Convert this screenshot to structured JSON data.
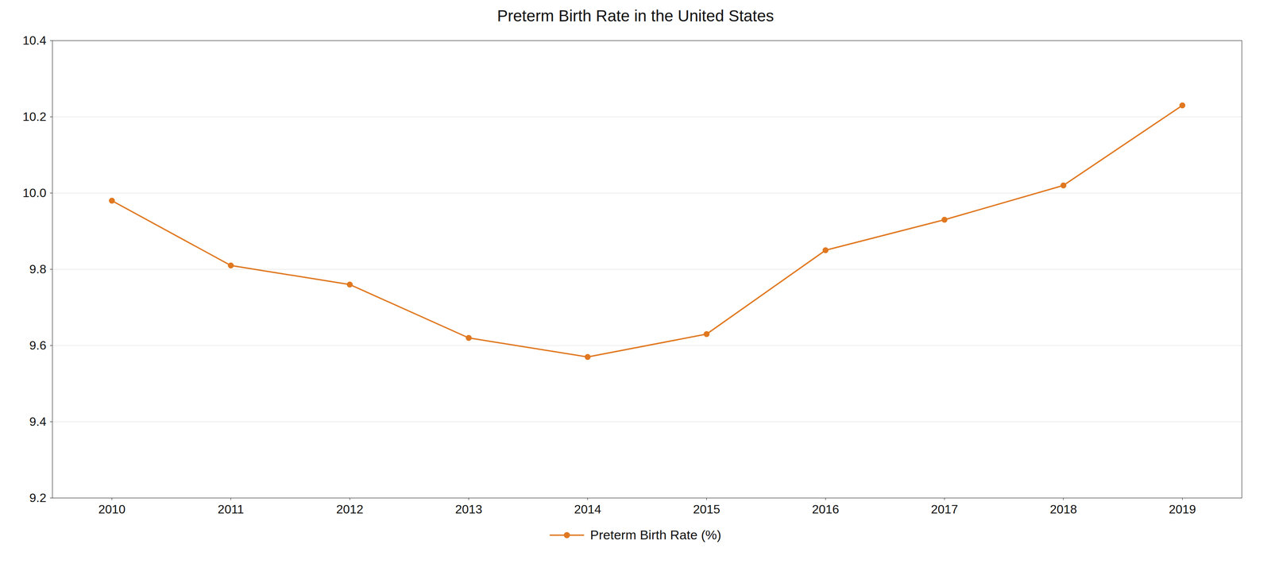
{
  "chart_data": {
    "type": "line",
    "title": "Preterm Birth Rate in the United States",
    "x": [
      2010,
      2011,
      2012,
      2013,
      2014,
      2015,
      2016,
      2017,
      2018,
      2019
    ],
    "series": [
      {
        "name": "Preterm Birth Rate (%)",
        "color": "#E07820",
        "marker": "circle",
        "values": [
          9.98,
          9.81,
          9.76,
          9.62,
          9.57,
          9.63,
          9.85,
          9.93,
          10.02,
          10.23
        ]
      }
    ],
    "xlim": [
      2009.5,
      2019.5
    ],
    "xticks": [
      2010,
      2011,
      2012,
      2013,
      2014,
      2015,
      2016,
      2017,
      2018,
      2019
    ],
    "ylim": [
      9.2,
      10.4
    ],
    "yticks": [
      9.2,
      9.4,
      9.6,
      9.8,
      {
        "value": 10,
        "label": "10.0"
      },
      10.2,
      10.4
    ],
    "grid": true,
    "legend": "bottom"
  }
}
